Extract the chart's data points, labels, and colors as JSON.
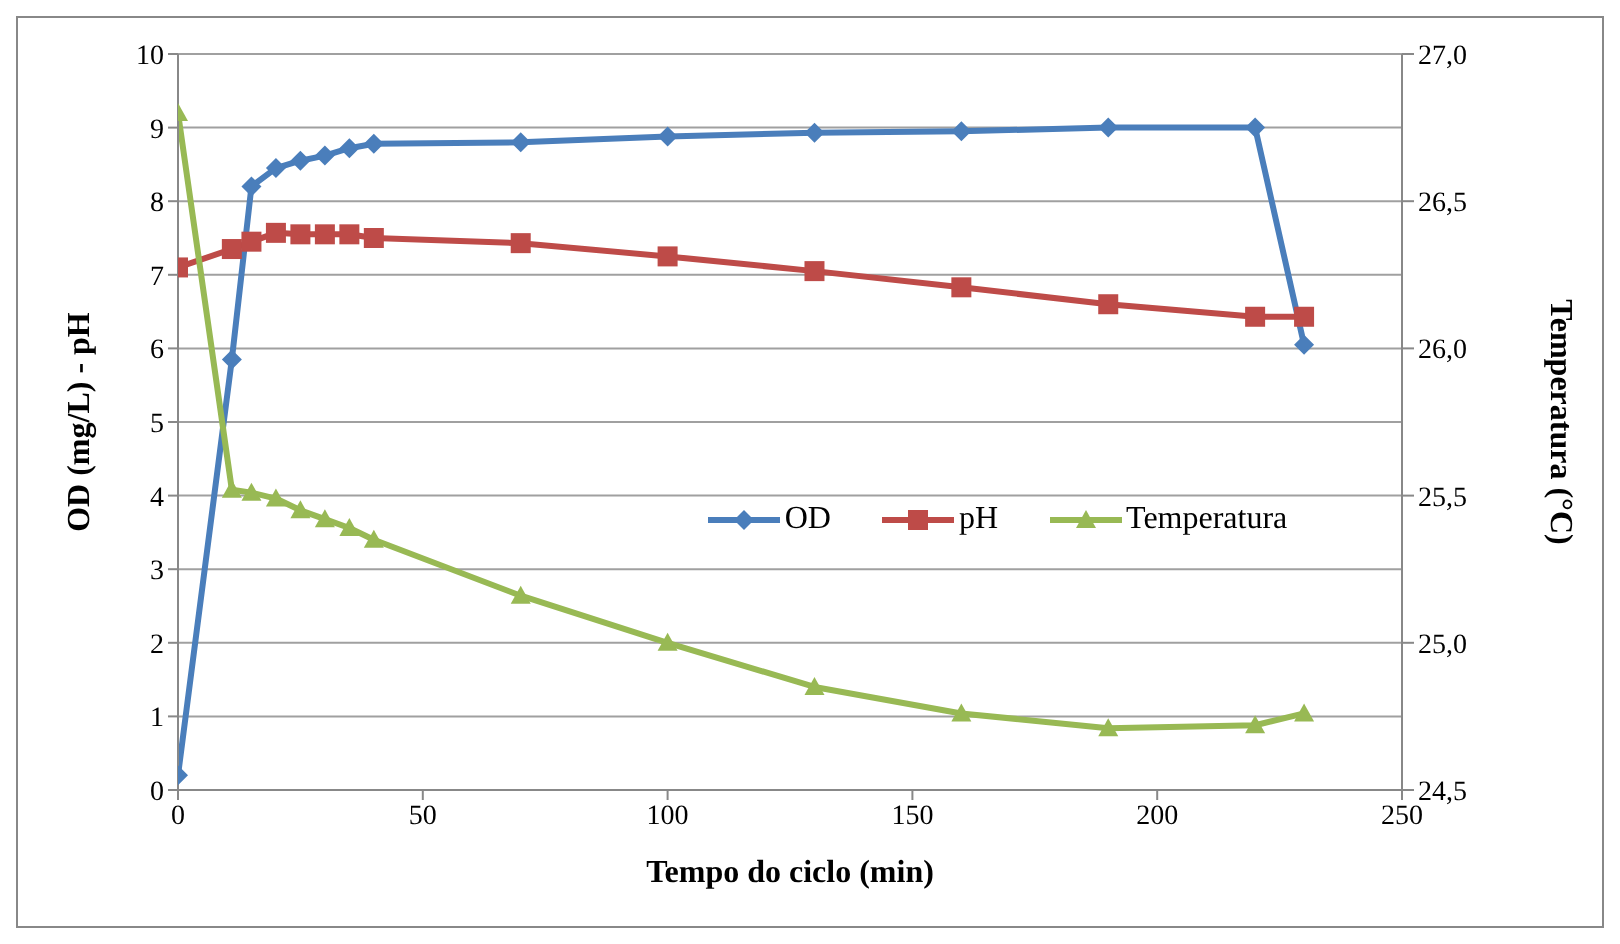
{
  "chart_data": {
    "type": "line",
    "xlabel": "Tempo do ciclo  (min)",
    "ylabel": "OD (mg/L) - pH",
    "y2label": "Temperatura (°C)",
    "x": [
      0,
      11,
      15,
      20,
      25,
      30,
      35,
      40,
      70,
      100,
      130,
      160,
      190,
      220,
      230
    ],
    "series": [
      {
        "name": "OD",
        "color": "#4a7ebb",
        "marker": "diamond",
        "values": [
          0.2,
          5.85,
          8.2,
          8.45,
          8.55,
          8.62,
          8.72,
          8.78,
          8.8,
          8.88,
          8.93,
          8.95,
          9.0,
          9.0,
          6.05
        ]
      },
      {
        "name": "pH",
        "color": "#be4b48",
        "marker": "square",
        "values": [
          7.1,
          7.35,
          7.45,
          7.57,
          7.55,
          7.55,
          7.55,
          7.5,
          7.43,
          7.25,
          7.05,
          6.83,
          6.6,
          6.43,
          6.43
        ]
      },
      {
        "name": "Temperatura",
        "color": "#98b954",
        "marker": "triangle",
        "axis": "y2",
        "values": [
          26.8,
          25.52,
          25.51,
          25.49,
          25.45,
          25.42,
          25.39,
          25.35,
          25.16,
          25.0,
          24.85,
          24.76,
          24.71,
          24.72,
          24.76
        ]
      }
    ],
    "xlim": [
      0,
      250
    ],
    "xticks": [
      0,
      50,
      100,
      150,
      200,
      250
    ],
    "ylim": [
      0,
      10
    ],
    "yticks": [
      0,
      1,
      2,
      3,
      4,
      5,
      6,
      7,
      8,
      9,
      10
    ],
    "y2lim": [
      24.5,
      27.0
    ],
    "y2ticks": [
      {
        "value": 24.5,
        "label": "24,5"
      },
      {
        "value": 25.0,
        "label": "25,0"
      },
      {
        "value": 25.5,
        "label": "25,5"
      },
      {
        "value": 26.0,
        "label": "26,0"
      },
      {
        "value": 26.5,
        "label": "26,5"
      },
      {
        "value": 27.0,
        "label": "27,0"
      }
    ],
    "grid": "y",
    "legend": "center",
    "line_style": "solid"
  }
}
